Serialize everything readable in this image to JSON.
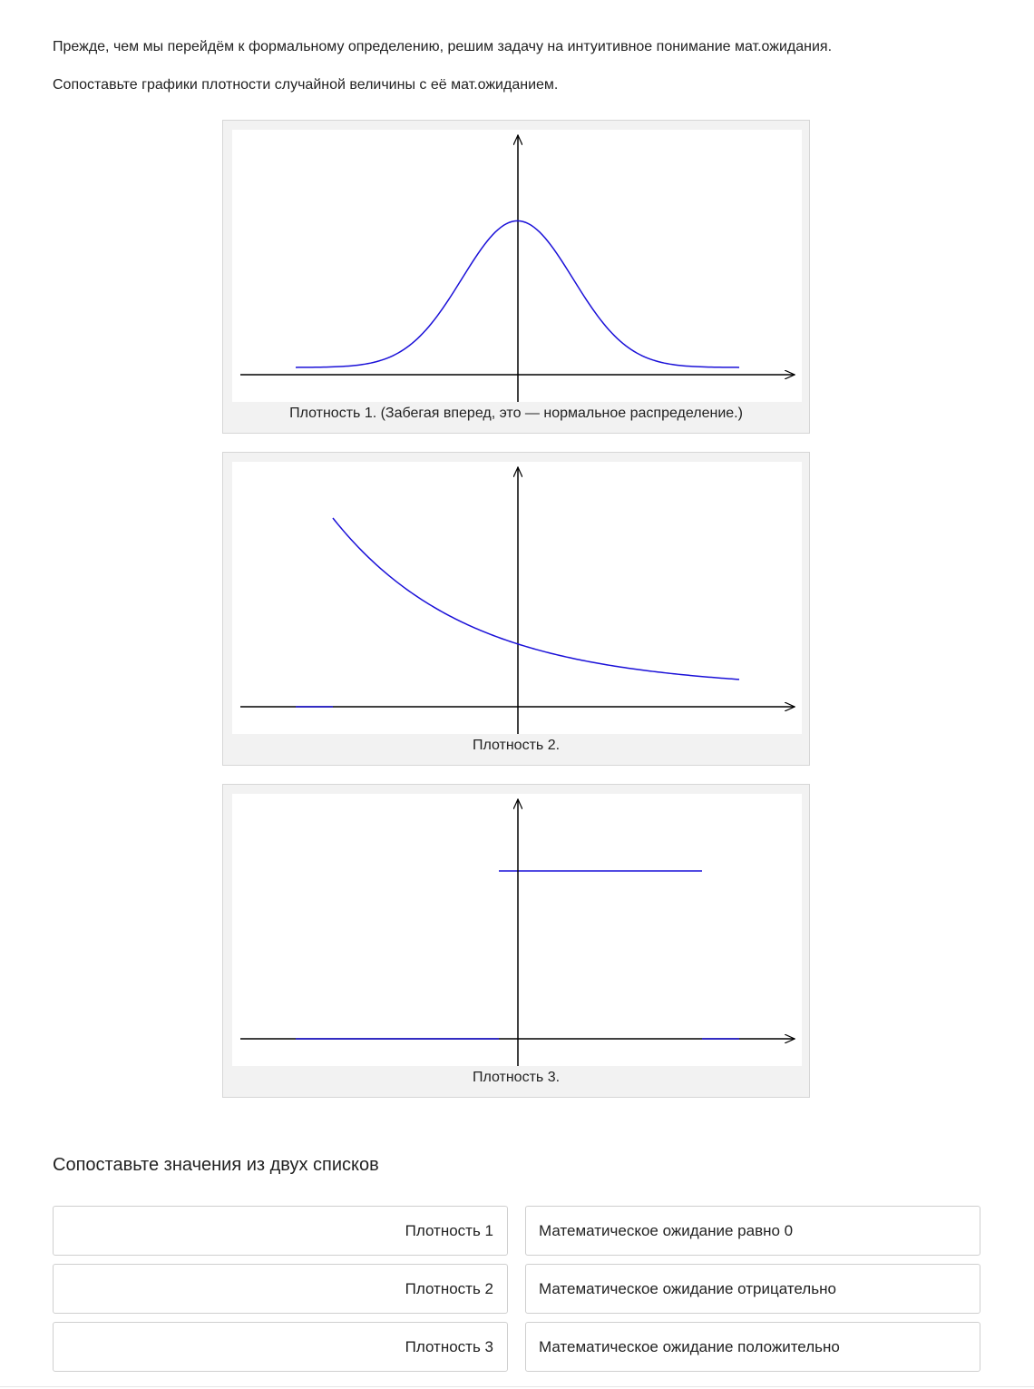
{
  "intro": {
    "paragraph1": "Прежде, чем мы перейдём к формальному определению, решим задачу на интуитивное понимание мат.ожидания.",
    "paragraph2": "Сопоставьте графики плотности случайной величины с её мат.ожиданием."
  },
  "figures": [
    {
      "caption": "Плотность 1. (Забегая вперед, это — нормальное распределение.)"
    },
    {
      "caption": "Плотность 2."
    },
    {
      "caption": "Плотность 3."
    }
  ],
  "colors": {
    "curve": "#1a10d8",
    "axes": "#000000",
    "figure_background": "#f2f2f2"
  },
  "chart_data": [
    {
      "type": "line",
      "title": "",
      "xlabel": "",
      "ylabel": "",
      "axes": "arrows only, no ticks",
      "grid": false,
      "series": [
        {
          "shape": "gaussian bell centered at 0",
          "x": [
            -4,
            4
          ],
          "peak_y": 0.4
        }
      ]
    },
    {
      "type": "line",
      "title": "",
      "xlabel": "",
      "ylabel": "",
      "axes": "arrows only, no ticks",
      "grid": false,
      "series": [
        {
          "shape": "zero on x<-3.3, then decreasing curve",
          "x": [
            -4,
            4
          ]
        }
      ]
    },
    {
      "type": "line",
      "title": "",
      "xlabel": "",
      "ylabel": "",
      "axes": "arrows only, no ticks",
      "grid": false,
      "series": [
        {
          "shape": "uniform step: zero outside, constant on [-0.3, 3.3]",
          "x": [
            -4,
            4
          ]
        }
      ]
    }
  ],
  "matching": {
    "title": "Сопоставьте значения из двух списков",
    "left": [
      "Плотность 1",
      "Плотность 2",
      "Плотность 3"
    ],
    "right": [
      "Математическое ожидание равно 0",
      "Математическое ожидание отрицательно",
      "Математическое ожидание положительно"
    ]
  }
}
